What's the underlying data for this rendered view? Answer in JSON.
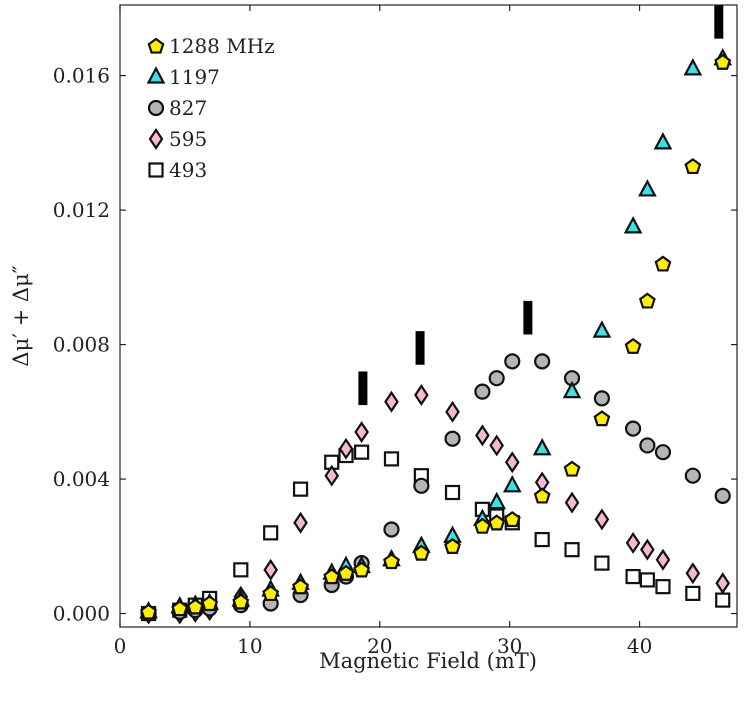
{
  "chart_data": {
    "type": "scatter",
    "title": "",
    "xlabel": "Magnetic Field (mT)",
    "ylabel": "Δμ′ + Δμ″",
    "xlim": [
      0,
      47.5
    ],
    "ylim": [
      -0.0004,
      0.0181
    ],
    "xticks": [
      {
        "value": 0,
        "label": "0"
      },
      {
        "value": 10,
        "label": "10"
      },
      {
        "value": 20,
        "label": "20"
      },
      {
        "value": 30,
        "label": "30"
      },
      {
        "value": 40,
        "label": "40"
      }
    ],
    "yticks": [
      {
        "value": 0.0,
        "label": "0.000"
      },
      {
        "value": 0.004,
        "label": "0.004"
      },
      {
        "value": 0.008,
        "label": "0.008"
      },
      {
        "value": 0.012,
        "label": "0.012"
      },
      {
        "value": 0.016,
        "label": "0.016"
      }
    ],
    "legend_position": "top-left",
    "series": [
      {
        "name": "1288 MHz",
        "marker": "pentagon",
        "color": "#ffee00",
        "x": [
          2.2,
          4.6,
          5.8,
          6.9,
          9.3,
          11.6,
          13.9,
          16.3,
          17.4,
          18.6,
          20.9,
          23.2,
          25.6,
          27.9,
          29.0,
          30.2,
          32.5,
          34.8,
          37.1,
          39.5,
          40.6,
          41.8,
          44.1,
          46.4
        ],
        "y": [
          5e-05,
          0.00015,
          0.0002,
          0.0003,
          0.00035,
          0.0006,
          0.0008,
          0.0011,
          0.0012,
          0.0013,
          0.00155,
          0.0018,
          0.002,
          0.0026,
          0.0027,
          0.0028,
          0.0035,
          0.0043,
          0.0058,
          0.00795,
          0.0093,
          0.0104,
          0.0133,
          0.0164
        ]
      },
      {
        "name": "1197",
        "marker": "triangle",
        "color": "#3ee0e8",
        "x": [
          2.2,
          4.6,
          5.8,
          6.9,
          9.3,
          11.6,
          13.9,
          16.3,
          17.4,
          18.6,
          20.9,
          23.2,
          25.6,
          27.9,
          29.0,
          30.2,
          32.5,
          34.8,
          37.1,
          39.5,
          40.6,
          41.8,
          44.1,
          46.4
        ],
        "y": [
          5e-05,
          0.0002,
          0.00025,
          0.0003,
          0.0004,
          0.0007,
          0.0009,
          0.0012,
          0.0014,
          0.0014,
          0.0016,
          0.002,
          0.0023,
          0.0028,
          0.0033,
          0.0038,
          0.0049,
          0.0066,
          0.0084,
          0.0115,
          0.0126,
          0.014,
          0.0162,
          0.0165
        ]
      },
      {
        "name": "827",
        "marker": "circle",
        "color": "#b5b5b5",
        "x": [
          2.2,
          4.6,
          5.8,
          6.9,
          9.3,
          11.6,
          13.9,
          16.3,
          17.4,
          18.6,
          20.9,
          23.2,
          25.6,
          27.9,
          29.0,
          30.2,
          32.5,
          34.8,
          37.1,
          39.5,
          40.6,
          41.8,
          44.1,
          46.4
        ],
        "y": [
          0.0,
          5e-05,
          0.0001,
          0.00015,
          0.00025,
          0.0003,
          0.00055,
          0.00085,
          0.0011,
          0.0015,
          0.0025,
          0.0038,
          0.0052,
          0.0066,
          0.007,
          0.0075,
          0.0075,
          0.007,
          0.0064,
          0.0055,
          0.005,
          0.0048,
          0.0041,
          0.0035
        ]
      },
      {
        "name": "595",
        "marker": "diamond",
        "color": "#f7b8d6",
        "x": [
          2.2,
          4.6,
          5.8,
          6.9,
          9.3,
          11.6,
          13.9,
          16.3,
          17.4,
          18.6,
          20.9,
          23.2,
          25.6,
          27.9,
          29.0,
          30.2,
          32.5,
          34.8,
          37.1,
          39.5,
          40.6,
          41.8,
          44.1,
          46.4
        ],
        "y": [
          0.0,
          0.0,
          5e-05,
          0.0001,
          0.0005,
          0.0013,
          0.0027,
          0.0041,
          0.0049,
          0.0054,
          0.0063,
          0.0065,
          0.006,
          0.0053,
          0.005,
          0.0045,
          0.0039,
          0.0033,
          0.0028,
          0.0021,
          0.0019,
          0.0016,
          0.0012,
          0.0009
        ]
      },
      {
        "name": "493",
        "marker": "square",
        "color": "#ffffff",
        "x": [
          2.2,
          4.6,
          5.8,
          6.9,
          9.3,
          11.6,
          13.9,
          16.3,
          17.4,
          18.6,
          20.9,
          23.2,
          25.6,
          27.9,
          29.0,
          30.2,
          32.5,
          34.8,
          37.1,
          39.5,
          40.6,
          41.8,
          44.1,
          46.4
        ],
        "y": [
          0.0,
          0.0001,
          0.00025,
          0.00045,
          0.0013,
          0.0024,
          0.0037,
          0.0045,
          0.0047,
          0.0048,
          0.0046,
          0.0041,
          0.0036,
          0.0031,
          0.0029,
          0.0027,
          0.0022,
          0.0019,
          0.0015,
          0.0011,
          0.001,
          0.0008,
          0.0006,
          0.0004
        ]
      }
    ],
    "annotations": [
      {
        "type": "vertical-bar",
        "x": 18.7,
        "y_bottom": 0.0062,
        "y_top": 0.0072
      },
      {
        "type": "vertical-bar",
        "x": 23.1,
        "y_bottom": 0.0074,
        "y_top": 0.0084
      },
      {
        "type": "vertical-bar",
        "x": 31.4,
        "y_bottom": 0.0083,
        "y_top": 0.0093
      },
      {
        "type": "vertical-bar",
        "x": 46.1,
        "y_bottom": 0.0171,
        "y_top": 0.0182
      }
    ]
  }
}
